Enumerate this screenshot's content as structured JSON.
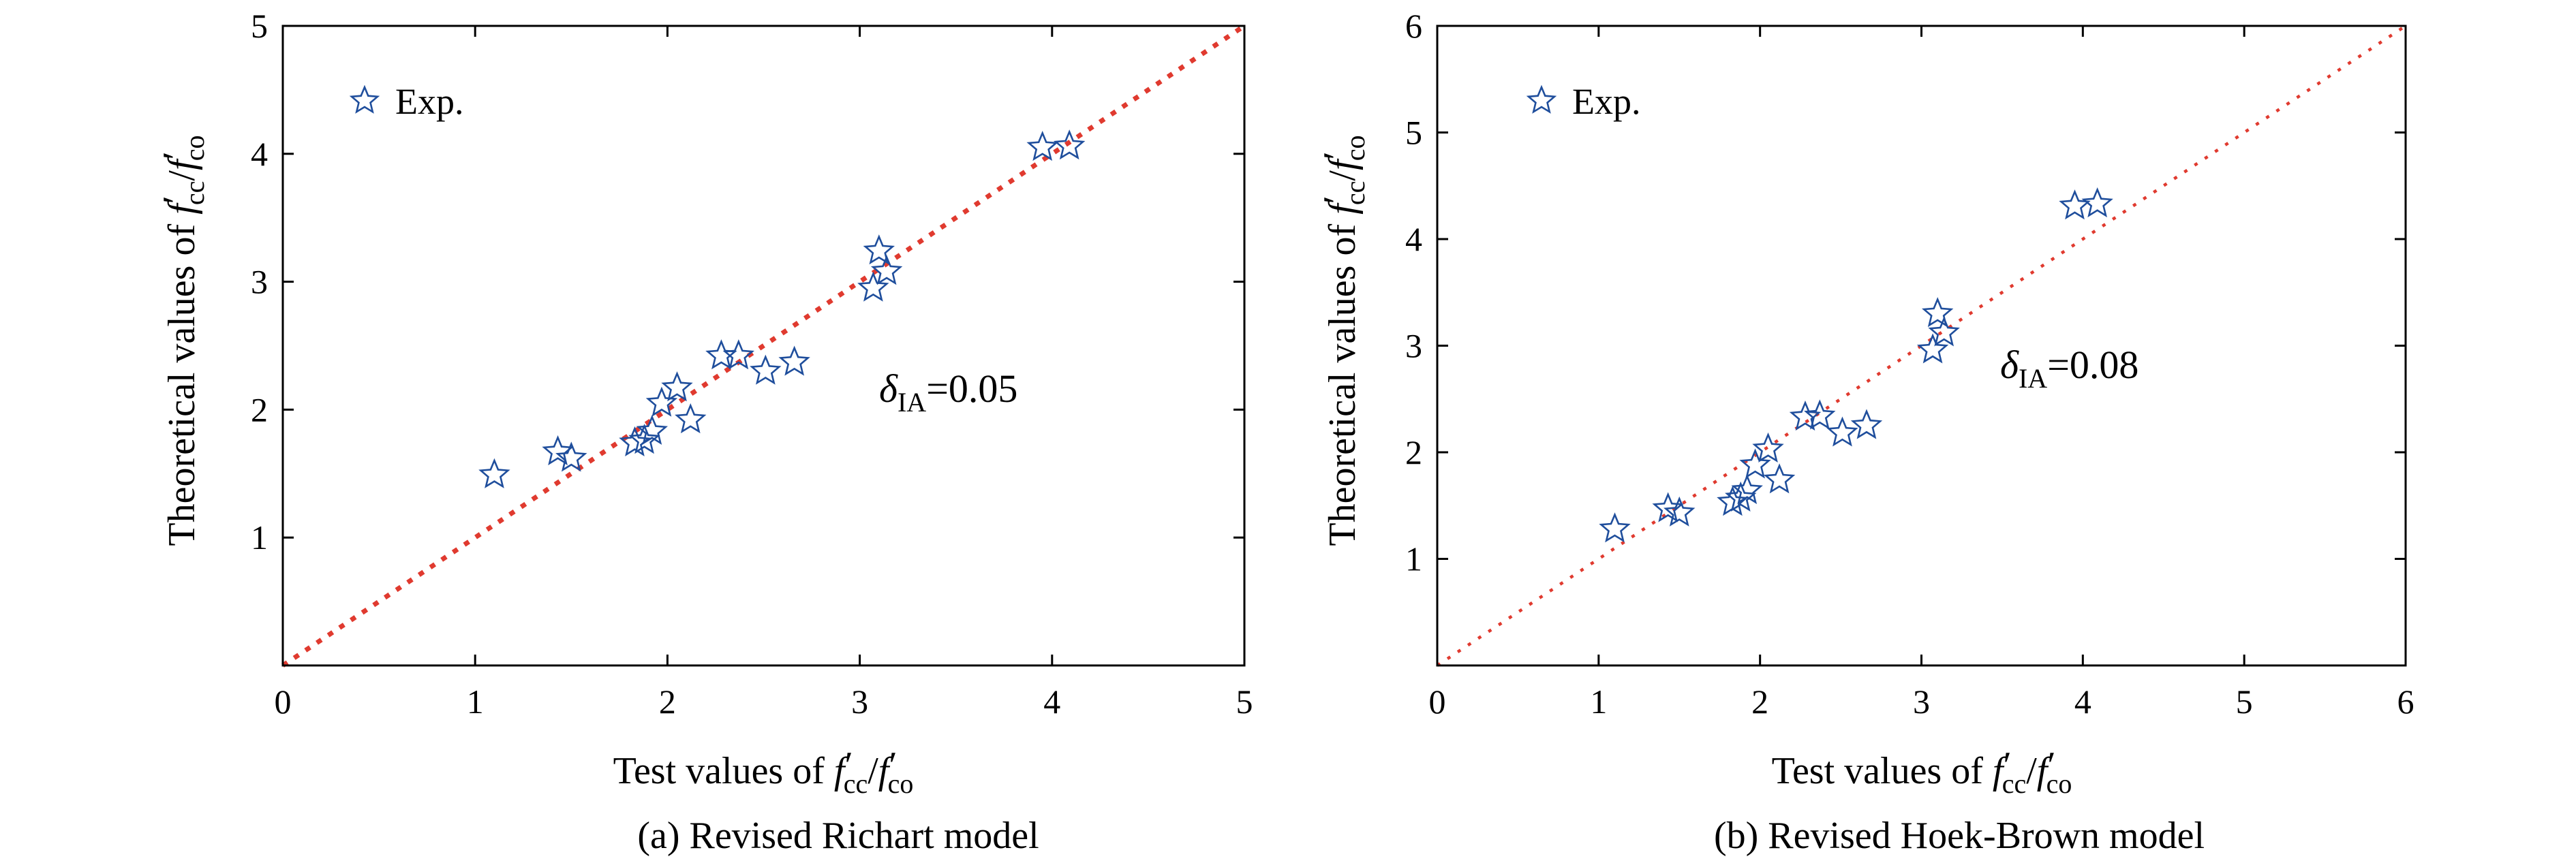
{
  "chart_data": [
    {
      "type": "scatter",
      "panel_id": "a",
      "caption": "(a) Revised Richart model",
      "xlabel_prefix": "Test values of ",
      "ylabel_prefix": "Theoretical values of ",
      "ratio": {
        "f1": "f",
        "p1": "′",
        "s1": "cc",
        "slash": "/",
        "f2": "f",
        "p2": "′",
        "s2": "co"
      },
      "xlim": [
        0,
        5
      ],
      "ylim": [
        0,
        5
      ],
      "xticks": [
        0,
        1,
        2,
        3,
        4,
        5
      ],
      "yticks": [
        1,
        2,
        3,
        4,
        5
      ],
      "legend": {
        "label": "Exp.",
        "position": "top-left"
      },
      "reference_line": {
        "type": "y=x",
        "style": "dotted",
        "color": "#e03a2f"
      },
      "annotation": {
        "symbol": "δ",
        "sub": "IA",
        "text": "=0.05"
      },
      "series": [
        {
          "name": "Exp.",
          "marker": "star",
          "color": "#1f4e9c",
          "x": [
            1.1,
            1.43,
            1.5,
            1.83,
            1.88,
            1.92,
            1.97,
            2.05,
            2.12,
            2.28,
            2.37,
            2.51,
            2.66,
            3.07,
            3.1,
            3.14,
            3.95,
            4.09
          ],
          "y": [
            1.49,
            1.67,
            1.62,
            1.74,
            1.76,
            1.83,
            2.05,
            2.17,
            1.92,
            2.42,
            2.42,
            2.3,
            2.37,
            2.95,
            3.24,
            3.08,
            4.05,
            4.06
          ]
        }
      ]
    },
    {
      "type": "scatter",
      "panel_id": "b",
      "caption": "(b) Revised Hoek-Brown model",
      "xlabel_prefix": "Test values of ",
      "ylabel_prefix": "Theoretical values of ",
      "ratio": {
        "f1": "f",
        "p1": "′",
        "s1": "cc",
        "slash": "/",
        "f2": "f",
        "p2": "′",
        "s2": "co"
      },
      "xlim": [
        0,
        6
      ],
      "ylim": [
        0,
        6
      ],
      "xticks": [
        0,
        1,
        2,
        3,
        4,
        5,
        6
      ],
      "yticks": [
        1,
        2,
        3,
        4,
        5,
        6
      ],
      "legend": {
        "label": "Exp.",
        "position": "top-left"
      },
      "reference_line": {
        "type": "y=x",
        "style": "dotted",
        "color": "#e03a2f"
      },
      "annotation": {
        "symbol": "δ",
        "sub": "IA",
        "text": "=0.08"
      },
      "series": [
        {
          "name": "Exp.",
          "marker": "star",
          "color": "#1f4e9c",
          "x": [
            1.1,
            1.43,
            1.5,
            1.83,
            1.88,
            1.92,
            1.97,
            2.05,
            2.12,
            2.28,
            2.37,
            2.51,
            2.66,
            3.07,
            3.1,
            3.14,
            3.95,
            4.09
          ],
          "y": [
            1.28,
            1.47,
            1.43,
            1.53,
            1.57,
            1.64,
            1.88,
            2.03,
            1.74,
            2.33,
            2.34,
            2.18,
            2.25,
            2.96,
            3.3,
            3.12,
            4.31,
            4.33
          ]
        }
      ]
    }
  ]
}
